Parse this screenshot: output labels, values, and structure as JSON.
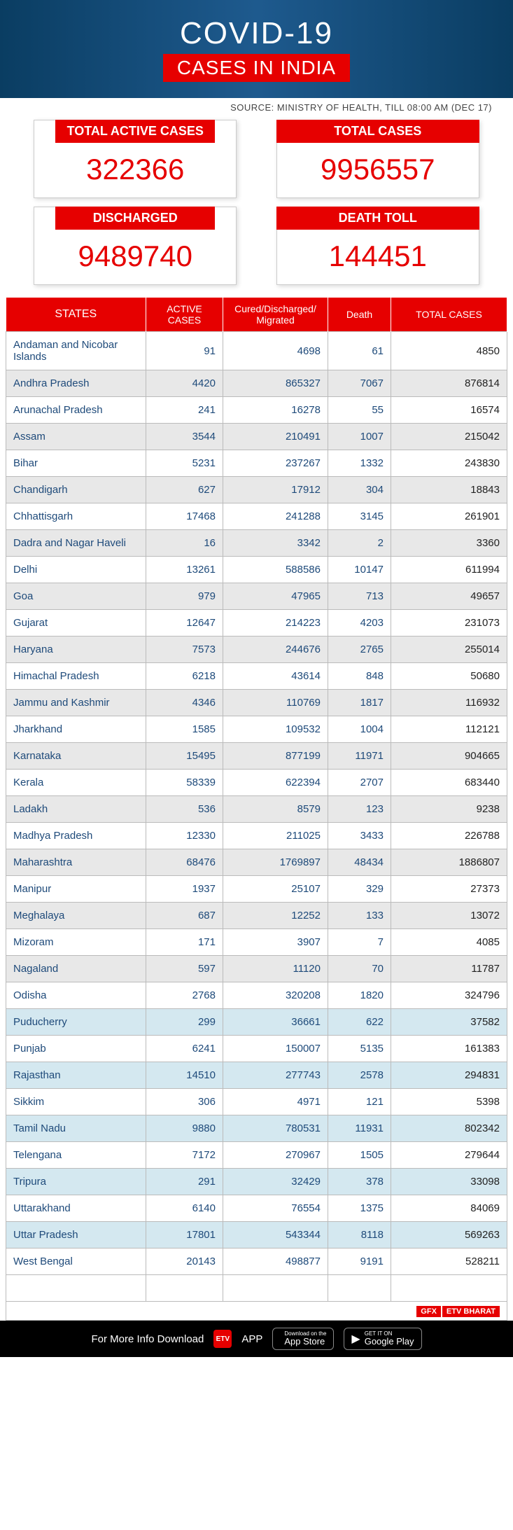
{
  "header": {
    "title": "COVID-19",
    "subtitle": "CASES IN INDIA",
    "source": "SOURCE: MINISTRY OF HEALTH, TILL 08:00 AM (DEC 17)"
  },
  "stats": [
    {
      "label": "TOTAL ACTIVE CASES",
      "value": "322366"
    },
    {
      "label": "TOTAL CASES",
      "value": "9956557"
    },
    {
      "label": "DISCHARGED",
      "value": "9489740"
    },
    {
      "label": "DEATH TOLL",
      "value": "144451"
    }
  ],
  "table": {
    "columns": [
      "STATES",
      "ACTIVE CASES",
      "Cured/Discharged/\nMigrated",
      "Death",
      "TOTAL CASES"
    ],
    "rows": [
      [
        "Andaman and Nicobar Islands",
        "91",
        "4698",
        "61",
        "4850"
      ],
      [
        "Andhra Pradesh",
        "4420",
        "865327",
        "7067",
        "876814"
      ],
      [
        "Arunachal Pradesh",
        "241",
        "16278",
        "55",
        "16574"
      ],
      [
        "Assam",
        "3544",
        "210491",
        "1007",
        "215042"
      ],
      [
        "Bihar",
        "5231",
        "237267",
        "1332",
        "243830"
      ],
      [
        "Chandigarh",
        "627",
        "17912",
        "304",
        "18843"
      ],
      [
        "Chhattisgarh",
        "17468",
        "241288",
        "3145",
        "261901"
      ],
      [
        "Dadra and Nagar Haveli",
        "16",
        "3342",
        "2",
        "3360"
      ],
      [
        "Delhi",
        "13261",
        "588586",
        "10147",
        "611994"
      ],
      [
        "Goa",
        "979",
        "47965",
        "713",
        "49657"
      ],
      [
        "Gujarat",
        "12647",
        "214223",
        "4203",
        "231073"
      ],
      [
        "Haryana",
        "7573",
        "244676",
        "2765",
        "255014"
      ],
      [
        "Himachal Pradesh",
        "6218",
        "43614",
        "848",
        "50680"
      ],
      [
        "Jammu and Kashmir",
        "4346",
        "110769",
        "1817",
        "116932"
      ],
      [
        "Jharkhand",
        "1585",
        "109532",
        "1004",
        "112121"
      ],
      [
        "Karnataka",
        "15495",
        "877199",
        "11971",
        "904665"
      ],
      [
        "Kerala",
        "58339",
        "622394",
        "2707",
        "683440"
      ],
      [
        "Ladakh",
        "536",
        "8579",
        "123",
        "9238"
      ],
      [
        "Madhya Pradesh",
        "12330",
        "211025",
        "3433",
        "226788"
      ],
      [
        "Maharashtra",
        "68476",
        "1769897",
        "48434",
        "1886807"
      ],
      [
        "Manipur",
        "1937",
        "25107",
        "329",
        "27373"
      ],
      [
        "Meghalaya",
        "687",
        "12252",
        "133",
        "13072"
      ],
      [
        "Mizoram",
        "171",
        "3907",
        "7",
        "4085"
      ],
      [
        "Nagaland",
        "597",
        "11120",
        "70",
        "11787"
      ],
      [
        "Odisha",
        "2768",
        "320208",
        "1820",
        "324796"
      ],
      [
        "Puducherry",
        "299",
        "36661",
        "622",
        "37582"
      ],
      [
        "Punjab",
        "6241",
        "150007",
        "5135",
        "161383"
      ],
      [
        "Rajasthan",
        "14510",
        "277743",
        "2578",
        "294831"
      ],
      [
        "Sikkim",
        "306",
        "4971",
        "121",
        "5398"
      ],
      [
        "Tamil Nadu",
        "9880",
        "780531",
        "11931",
        "802342"
      ],
      [
        "Telengana",
        "7172",
        "270967",
        "1505",
        "279644"
      ],
      [
        "Tripura",
        "291",
        "32429",
        "378",
        "33098"
      ],
      [
        "Uttarakhand",
        "6140",
        "76554",
        "1375",
        "84069"
      ],
      [
        "Uttar Pradesh",
        "17801",
        "543344",
        "8118",
        "569263"
      ],
      [
        "West Bengal",
        "20143",
        "498877",
        "9191",
        "528211"
      ]
    ],
    "row_styles": [
      "",
      "even",
      "",
      "even",
      "",
      "even",
      "",
      "even",
      "",
      "even",
      "",
      "even",
      "",
      "even",
      "",
      "even",
      "",
      "even",
      "",
      "even",
      "",
      "even",
      "",
      "even",
      "",
      "blue",
      "",
      "blue",
      "",
      "blue",
      "",
      "blue",
      "",
      "blue",
      ""
    ],
    "gfx": "GFX",
    "etv": "ETV BHARAT"
  },
  "footer": {
    "text": "For More Info Download",
    "app": "APP",
    "appstore_t1": "Download on the",
    "appstore_t2": "App Store",
    "play_t1": "GET IT ON",
    "play_t2": "Google Play"
  },
  "colors": {
    "brand_red": "#e60000",
    "header_bg": "#0a3d62",
    "row_even": "#e8e8e8",
    "row_blue": "#d4e8f0",
    "text_blue": "#1e4a7a"
  }
}
